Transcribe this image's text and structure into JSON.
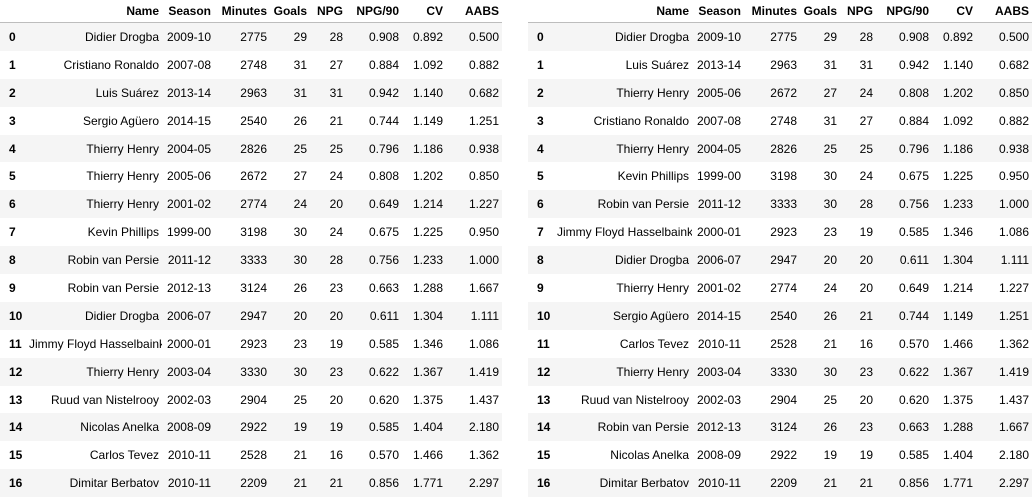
{
  "columns": [
    "",
    "Name",
    "Season",
    "Minutes",
    "Goals",
    "NPG",
    "NPG/90",
    "CV",
    "AABS"
  ],
  "left_table": {
    "rows": [
      [
        "0",
        "Didier Drogba",
        "2009-10",
        "2775",
        "29",
        "28",
        "0.908",
        "0.892",
        "0.500"
      ],
      [
        "1",
        "Cristiano Ronaldo",
        "2007-08",
        "2748",
        "31",
        "27",
        "0.884",
        "1.092",
        "0.882"
      ],
      [
        "2",
        "Luis Suárez",
        "2013-14",
        "2963",
        "31",
        "31",
        "0.942",
        "1.140",
        "0.682"
      ],
      [
        "3",
        "Sergio Agüero",
        "2014-15",
        "2540",
        "26",
        "21",
        "0.744",
        "1.149",
        "1.251"
      ],
      [
        "4",
        "Thierry Henry",
        "2004-05",
        "2826",
        "25",
        "25",
        "0.796",
        "1.186",
        "0.938"
      ],
      [
        "5",
        "Thierry Henry",
        "2005-06",
        "2672",
        "27",
        "24",
        "0.808",
        "1.202",
        "0.850"
      ],
      [
        "6",
        "Thierry Henry",
        "2001-02",
        "2774",
        "24",
        "20",
        "0.649",
        "1.214",
        "1.227"
      ],
      [
        "7",
        "Kevin Phillips",
        "1999-00",
        "3198",
        "30",
        "24",
        "0.675",
        "1.225",
        "0.950"
      ],
      [
        "8",
        "Robin van Persie",
        "2011-12",
        "3333",
        "30",
        "28",
        "0.756",
        "1.233",
        "1.000"
      ],
      [
        "9",
        "Robin van Persie",
        "2012-13",
        "3124",
        "26",
        "23",
        "0.663",
        "1.288",
        "1.667"
      ],
      [
        "10",
        "Didier Drogba",
        "2006-07",
        "2947",
        "20",
        "20",
        "0.611",
        "1.304",
        "1.111"
      ],
      [
        "11",
        "Jimmy Floyd Hasselbaink",
        "2000-01",
        "2923",
        "23",
        "19",
        "0.585",
        "1.346",
        "1.086"
      ],
      [
        "12",
        "Thierry Henry",
        "2003-04",
        "3330",
        "30",
        "23",
        "0.622",
        "1.367",
        "1.419"
      ],
      [
        "13",
        "Ruud van Nistelrooy",
        "2002-03",
        "2904",
        "25",
        "20",
        "0.620",
        "1.375",
        "1.437"
      ],
      [
        "14",
        "Nicolas Anelka",
        "2008-09",
        "2922",
        "19",
        "19",
        "0.585",
        "1.404",
        "2.180"
      ],
      [
        "15",
        "Carlos Tevez",
        "2010-11",
        "2528",
        "21",
        "16",
        "0.570",
        "1.466",
        "1.362"
      ],
      [
        "16",
        "Dimitar Berbatov",
        "2010-11",
        "2209",
        "21",
        "21",
        "0.856",
        "1.771",
        "2.297"
      ]
    ]
  },
  "right_table": {
    "rows": [
      [
        "0",
        "Didier Drogba",
        "2009-10",
        "2775",
        "29",
        "28",
        "0.908",
        "0.892",
        "0.500"
      ],
      [
        "1",
        "Luis Suárez",
        "2013-14",
        "2963",
        "31",
        "31",
        "0.942",
        "1.140",
        "0.682"
      ],
      [
        "2",
        "Thierry Henry",
        "2005-06",
        "2672",
        "27",
        "24",
        "0.808",
        "1.202",
        "0.850"
      ],
      [
        "3",
        "Cristiano Ronaldo",
        "2007-08",
        "2748",
        "31",
        "27",
        "0.884",
        "1.092",
        "0.882"
      ],
      [
        "4",
        "Thierry Henry",
        "2004-05",
        "2826",
        "25",
        "25",
        "0.796",
        "1.186",
        "0.938"
      ],
      [
        "5",
        "Kevin Phillips",
        "1999-00",
        "3198",
        "30",
        "24",
        "0.675",
        "1.225",
        "0.950"
      ],
      [
        "6",
        "Robin van Persie",
        "2011-12",
        "3333",
        "30",
        "28",
        "0.756",
        "1.233",
        "1.000"
      ],
      [
        "7",
        "Jimmy Floyd Hasselbaink",
        "2000-01",
        "2923",
        "23",
        "19",
        "0.585",
        "1.346",
        "1.086"
      ],
      [
        "8",
        "Didier Drogba",
        "2006-07",
        "2947",
        "20",
        "20",
        "0.611",
        "1.304",
        "1.111"
      ],
      [
        "9",
        "Thierry Henry",
        "2001-02",
        "2774",
        "24",
        "20",
        "0.649",
        "1.214",
        "1.227"
      ],
      [
        "10",
        "Sergio Agüero",
        "2014-15",
        "2540",
        "26",
        "21",
        "0.744",
        "1.149",
        "1.251"
      ],
      [
        "11",
        "Carlos Tevez",
        "2010-11",
        "2528",
        "21",
        "16",
        "0.570",
        "1.466",
        "1.362"
      ],
      [
        "12",
        "Thierry Henry",
        "2003-04",
        "3330",
        "30",
        "23",
        "0.622",
        "1.367",
        "1.419"
      ],
      [
        "13",
        "Ruud van Nistelrooy",
        "2002-03",
        "2904",
        "25",
        "20",
        "0.620",
        "1.375",
        "1.437"
      ],
      [
        "14",
        "Robin van Persie",
        "2012-13",
        "3124",
        "26",
        "23",
        "0.663",
        "1.288",
        "1.667"
      ],
      [
        "15",
        "Nicolas Anelka",
        "2008-09",
        "2922",
        "19",
        "19",
        "0.585",
        "1.404",
        "2.180"
      ],
      [
        "16",
        "Dimitar Berbatov",
        "2010-11",
        "2209",
        "21",
        "21",
        "0.856",
        "1.771",
        "2.297"
      ]
    ]
  }
}
